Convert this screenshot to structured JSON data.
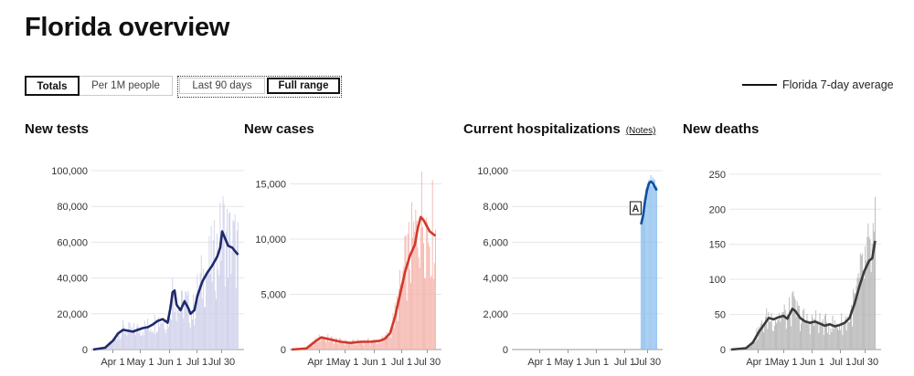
{
  "page": {
    "title": "Florida overview"
  },
  "controls": {
    "totals": "Totals",
    "per_million": "Per 1M people",
    "last_90": "Last 90 days",
    "full_range": "Full range"
  },
  "legend": {
    "label": "Florida 7-day average"
  },
  "charts": {
    "tests": {
      "title": "New tests"
    },
    "cases": {
      "title": "New cases"
    },
    "hosp": {
      "title": "Current hospitalizations",
      "notes": "(Notes)",
      "annotation": "A"
    },
    "deaths": {
      "title": "New deaths"
    }
  },
  "chart_data": [
    {
      "type": "bar",
      "title": "New tests",
      "x_range": [
        "Mar 1",
        "Jul 30"
      ],
      "x_ticks": [
        "Apr 1",
        "May 1",
        "Jun 1",
        "Jul 1",
        "Jul 30"
      ],
      "y_ticks": [
        0,
        20000,
        40000,
        60000,
        80000,
        100000
      ],
      "y_tick_labels": [
        "0",
        "20,000",
        "40,000",
        "60,000",
        "80,000",
        "100,000"
      ],
      "ylim": [
        0,
        100000
      ],
      "bar_color": "#cfd0ea",
      "line_color": "#1f2a6b",
      "average": [
        [
          0,
          0
        ],
        [
          12,
          1000
        ],
        [
          20,
          5000
        ],
        [
          25,
          9000
        ],
        [
          30,
          11000
        ],
        [
          35,
          10500
        ],
        [
          40,
          10000
        ],
        [
          45,
          11000
        ],
        [
          50,
          12000
        ],
        [
          55,
          12500
        ],
        [
          60,
          14000
        ],
        [
          65,
          16000
        ],
        [
          70,
          17000
        ],
        [
          75,
          15000
        ],
        [
          78,
          24000
        ],
        [
          80,
          32000
        ],
        [
          82,
          33000
        ],
        [
          84,
          25000
        ],
        [
          88,
          22000
        ],
        [
          92,
          27000
        ],
        [
          96,
          23000
        ],
        [
          98,
          20000
        ],
        [
          102,
          22000
        ],
        [
          105,
          30000
        ],
        [
          110,
          38000
        ],
        [
          115,
          43000
        ],
        [
          120,
          47000
        ],
        [
          125,
          52000
        ],
        [
          128,
          57000
        ],
        [
          130,
          66000
        ],
        [
          133,
          62000
        ],
        [
          136,
          58000
        ],
        [
          140,
          57000
        ],
        [
          143,
          55000
        ],
        [
          146,
          53000
        ]
      ]
    },
    {
      "type": "bar",
      "title": "New cases",
      "x_range": [
        "Mar 1",
        "Jul 30"
      ],
      "x_ticks": [
        "Apr 1",
        "May 1",
        "Jun 1",
        "Jul 1",
        "Jul 30"
      ],
      "y_ticks": [
        0,
        5000,
        10000,
        15000
      ],
      "y_tick_labels": [
        "0",
        "5,000",
        "10,000",
        "15,000"
      ],
      "ylim": [
        0,
        16200
      ],
      "bar_color": "#f4b3ab",
      "line_color": "#d0392b",
      "average": [
        [
          0,
          0
        ],
        [
          15,
          100
        ],
        [
          25,
          800
        ],
        [
          30,
          1100
        ],
        [
          40,
          900
        ],
        [
          50,
          700
        ],
        [
          60,
          600
        ],
        [
          70,
          700
        ],
        [
          80,
          700
        ],
        [
          90,
          800
        ],
        [
          95,
          1000
        ],
        [
          100,
          1500
        ],
        [
          105,
          3000
        ],
        [
          110,
          5000
        ],
        [
          115,
          7000
        ],
        [
          120,
          8500
        ],
        [
          125,
          9500
        ],
        [
          128,
          11000
        ],
        [
          131,
          12000
        ],
        [
          134,
          11700
        ],
        [
          137,
          11200
        ],
        [
          140,
          10700
        ],
        [
          143,
          10500
        ],
        [
          146,
          10300
        ]
      ]
    },
    {
      "type": "bar",
      "title": "Current hospitalizations",
      "x_range": [
        "Mar 1",
        "Jul 30"
      ],
      "x_ticks": [
        "Apr 1",
        "May 1",
        "Jun 1",
        "Jul 1",
        "Jul 30"
      ],
      "y_ticks": [
        0,
        2000,
        4000,
        6000,
        8000,
        10000
      ],
      "y_tick_labels": [
        "0",
        "2,000",
        "4,000",
        "6,000",
        "8,000",
        "10,000"
      ],
      "ylim": [
        0,
        10000
      ],
      "bar_color": "#8fc1ee",
      "line_color": "#0d4f9e",
      "annotation": {
        "label": "A",
        "x": 130,
        "y": 7500
      },
      "average": [
        [
          130,
          7000
        ],
        [
          132,
          7500
        ],
        [
          134,
          8300
        ],
        [
          136,
          8900
        ],
        [
          138,
          9300
        ],
        [
          140,
          9400
        ],
        [
          142,
          9300
        ],
        [
          144,
          9100
        ],
        [
          146,
          8900
        ]
      ]
    },
    {
      "type": "bar",
      "title": "New deaths",
      "x_range": [
        "Mar 1",
        "Jul 30"
      ],
      "x_ticks": [
        "Apr 1",
        "May 1",
        "Jun 1",
        "Jul 1",
        "Jul 30"
      ],
      "y_ticks": [
        0,
        50,
        100,
        150,
        200,
        250
      ],
      "y_tick_labels": [
        "0",
        "50",
        "100",
        "150",
        "200",
        "250"
      ],
      "ylim": [
        0,
        255
      ],
      "bar_color": "#b5b5b5",
      "line_color": "#3a3a3a",
      "average": [
        [
          0,
          0
        ],
        [
          15,
          2
        ],
        [
          22,
          10
        ],
        [
          28,
          25
        ],
        [
          33,
          35
        ],
        [
          38,
          45
        ],
        [
          43,
          43
        ],
        [
          48,
          46
        ],
        [
          53,
          48
        ],
        [
          57,
          44
        ],
        [
          62,
          58
        ],
        [
          65,
          55
        ],
        [
          70,
          45
        ],
        [
          75,
          40
        ],
        [
          80,
          38
        ],
        [
          85,
          40
        ],
        [
          90,
          37
        ],
        [
          95,
          34
        ],
        [
          100,
          36
        ],
        [
          105,
          33
        ],
        [
          110,
          35
        ],
        [
          115,
          38
        ],
        [
          120,
          45
        ],
        [
          125,
          65
        ],
        [
          130,
          90
        ],
        [
          135,
          112
        ],
        [
          140,
          127
        ],
        [
          143,
          130
        ],
        [
          146,
          155
        ]
      ]
    }
  ]
}
